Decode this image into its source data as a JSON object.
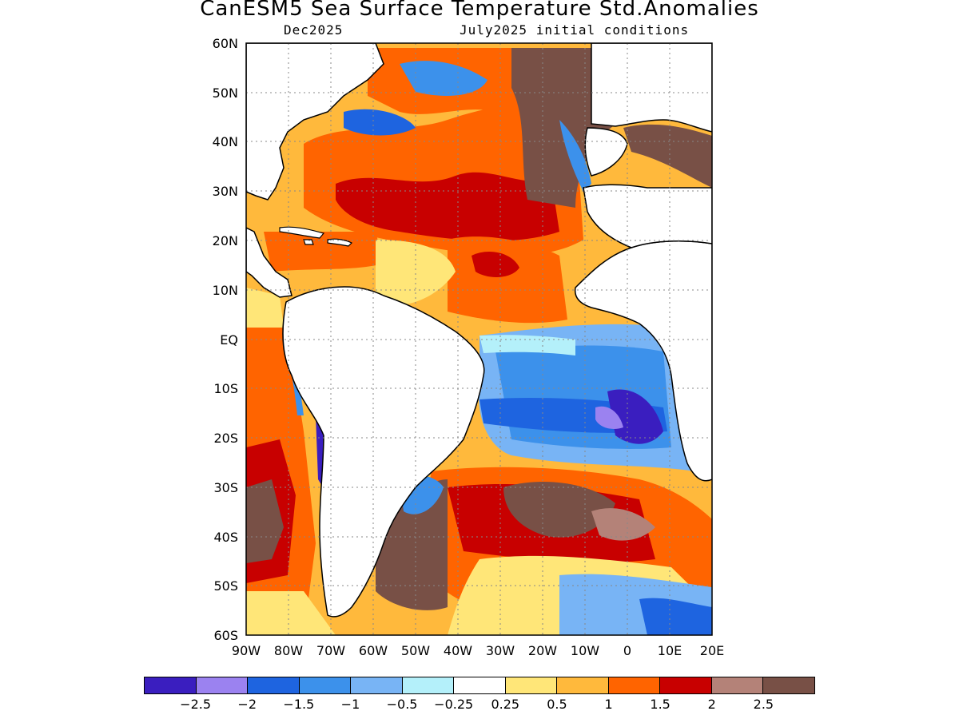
{
  "title": "CanESM5 Sea Surface Temperature Std.Anomalies",
  "subtitle_left": "Dec2025",
  "subtitle_right": "July2025 initial conditions",
  "lat_ticks": [
    "60N",
    "50N",
    "40N",
    "30N",
    "20N",
    "10N",
    "EQ",
    "10S",
    "20S",
    "30S",
    "40S",
    "50S",
    "60S"
  ],
  "lon_ticks": [
    "90W",
    "80W",
    "70W",
    "60W",
    "50W",
    "40W",
    "30W",
    "20W",
    "10W",
    "0",
    "10E",
    "20E"
  ],
  "map_extent": {
    "lon": [
      -90,
      20
    ],
    "lat": [
      -60,
      60
    ]
  },
  "colorbar": {
    "colors": [
      "#3a1ebf",
      "#9b82f0",
      "#1e64e0",
      "#3c91eb",
      "#78b4f5",
      "#b4f0fa",
      "#ffffff",
      "#ffe678",
      "#ffb93c",
      "#ff6400",
      "#c80000",
      "#b48278",
      "#785046"
    ],
    "labels": [
      "-2.5",
      "-2",
      "-1.5",
      "-1",
      "-0.5",
      "-0.25",
      "0.25",
      "0.5",
      "1",
      "1.5",
      "2",
      "2.5"
    ]
  }
}
